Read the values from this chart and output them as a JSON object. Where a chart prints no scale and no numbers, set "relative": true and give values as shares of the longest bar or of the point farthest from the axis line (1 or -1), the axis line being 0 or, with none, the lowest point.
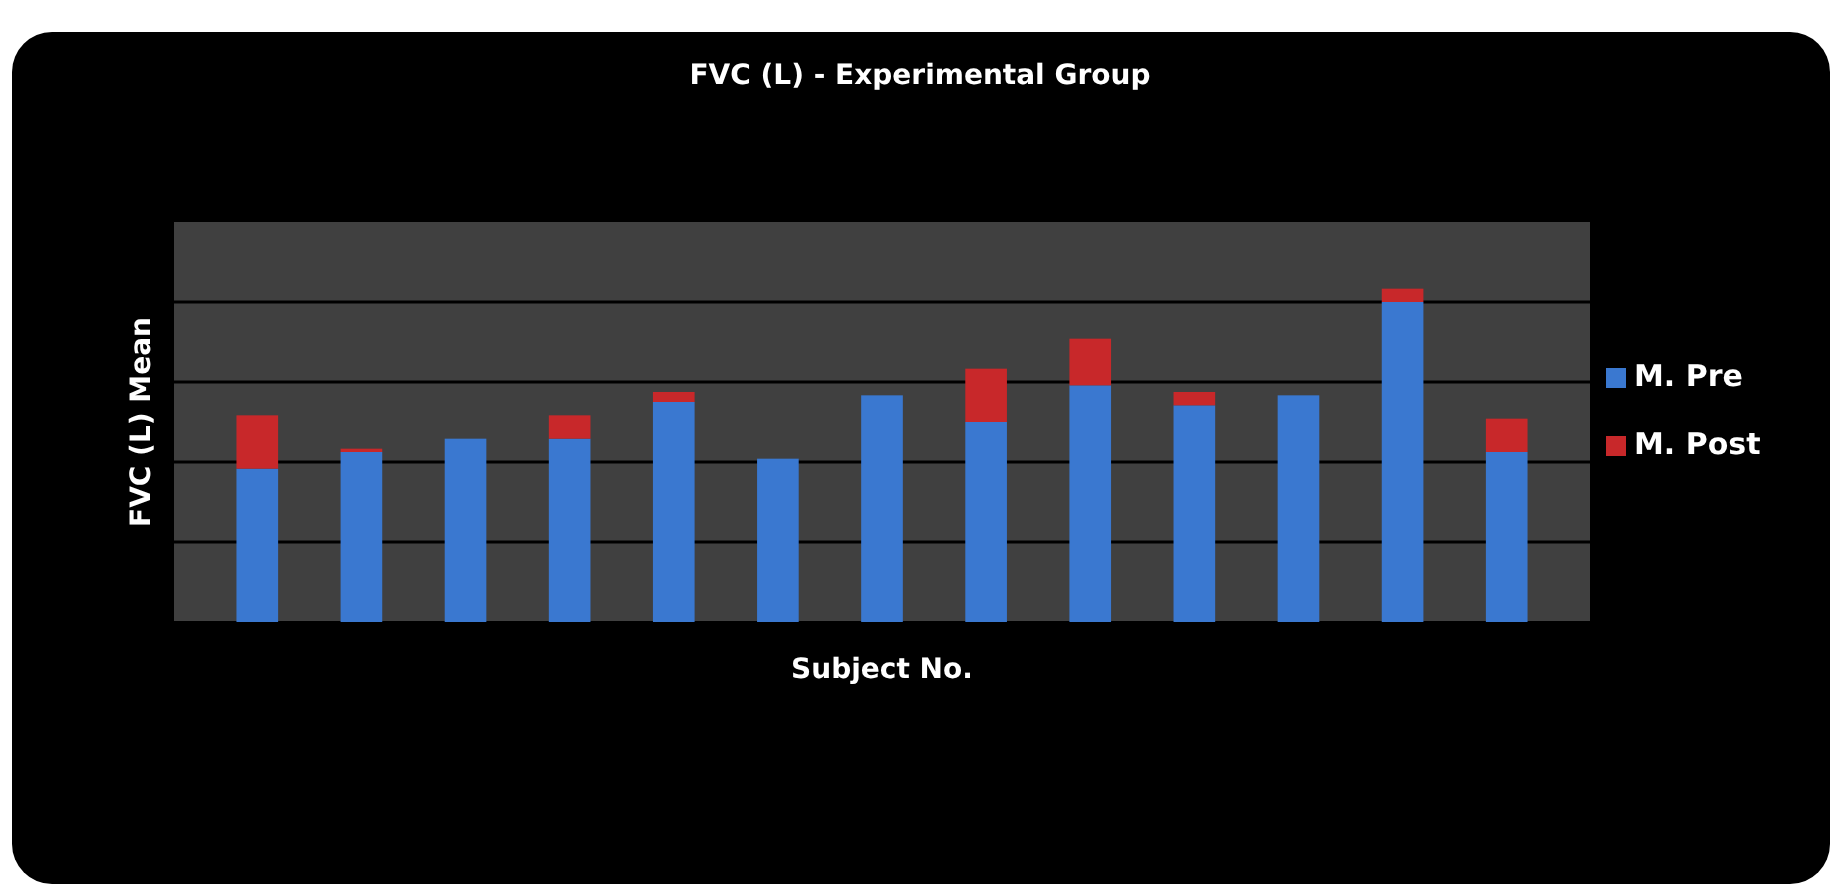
{
  "chart_data": {
    "type": "bar",
    "title": "FVC (L) - Experimental Group",
    "xlabel": "Subject No.",
    "ylabel": "FVC (L) Mean",
    "relative": true,
    "stacked": true,
    "grid": true,
    "legend": "right",
    "categories": [
      null,
      null,
      null,
      null,
      null,
      null,
      null,
      null,
      null,
      null,
      null,
      null,
      null
    ],
    "series": [
      {
        "name": "M. Pre",
        "color": "#3a78d0",
        "values": [
          0.46,
          0.51,
          0.55,
          0.55,
          0.66,
          0.49,
          0.68,
          0.6,
          0.71,
          0.65,
          0.68,
          0.96,
          0.51
        ]
      },
      {
        "name": "M. Post",
        "color": "#c8282a",
        "values": [
          0.16,
          0.01,
          0,
          0.07,
          0.03,
          0,
          0,
          0.16,
          0.14,
          0.04,
          0,
          0.04,
          0.1
        ]
      }
    ]
  }
}
